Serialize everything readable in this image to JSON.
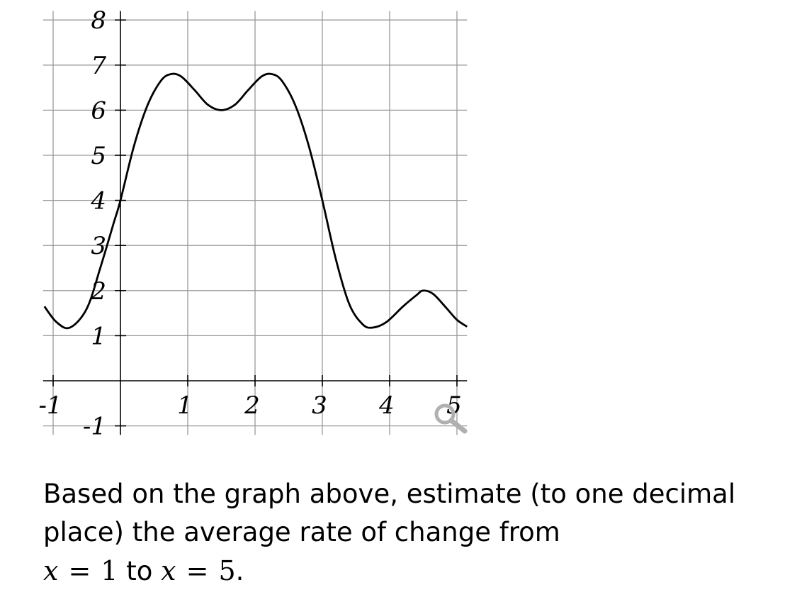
{
  "chart_data": {
    "type": "line",
    "title": "",
    "xlabel": "",
    "ylabel": "",
    "xlim": [
      -1.15,
      5.15
    ],
    "ylim": [
      -1.2,
      8.2
    ],
    "grid": true,
    "x_ticks": [
      -1,
      1,
      2,
      3,
      4,
      5
    ],
    "x_tick_labels": [
      "-1",
      "1",
      "2",
      "3",
      "4",
      "5"
    ],
    "y_ticks": [
      -1,
      1,
      2,
      3,
      4,
      5,
      6,
      7,
      8
    ],
    "y_tick_labels": [
      "-1",
      "1",
      "2",
      "3",
      "4",
      "5",
      "6",
      "7",
      "8"
    ],
    "series": [
      {
        "color": "#000000",
        "points": [
          [
            -1.13,
            1.65
          ],
          [
            -0.95,
            1.3
          ],
          [
            -0.75,
            1.18
          ],
          [
            -0.5,
            1.6
          ],
          [
            -0.3,
            2.5
          ],
          [
            -0.1,
            3.5
          ],
          [
            0,
            4.0
          ],
          [
            0.2,
            5.2
          ],
          [
            0.4,
            6.1
          ],
          [
            0.6,
            6.65
          ],
          [
            0.75,
            6.8
          ],
          [
            0.9,
            6.75
          ],
          [
            1.1,
            6.45
          ],
          [
            1.3,
            6.12
          ],
          [
            1.5,
            6.0
          ],
          [
            1.7,
            6.12
          ],
          [
            1.9,
            6.45
          ],
          [
            2.1,
            6.75
          ],
          [
            2.25,
            6.8
          ],
          [
            2.4,
            6.65
          ],
          [
            2.6,
            6.1
          ],
          [
            2.8,
            5.2
          ],
          [
            3.0,
            4.0
          ],
          [
            3.2,
            2.7
          ],
          [
            3.4,
            1.7
          ],
          [
            3.6,
            1.25
          ],
          [
            3.75,
            1.18
          ],
          [
            3.95,
            1.3
          ],
          [
            4.2,
            1.65
          ],
          [
            4.4,
            1.9
          ],
          [
            4.5,
            2.0
          ],
          [
            4.65,
            1.92
          ],
          [
            4.85,
            1.6
          ],
          [
            5.0,
            1.35
          ],
          [
            5.15,
            1.2
          ]
        ]
      }
    ]
  },
  "ui": {
    "zoom_icon": "magnifier-icon"
  },
  "question": {
    "text": "Based on the graph above, estimate (to one decimal place) the average rate of change from",
    "math": {
      "var1": "x",
      "eq1": "=",
      "val1": "1",
      "connector": "to",
      "var2": "x",
      "eq2": "=",
      "val2": "5",
      "end": "."
    }
  }
}
